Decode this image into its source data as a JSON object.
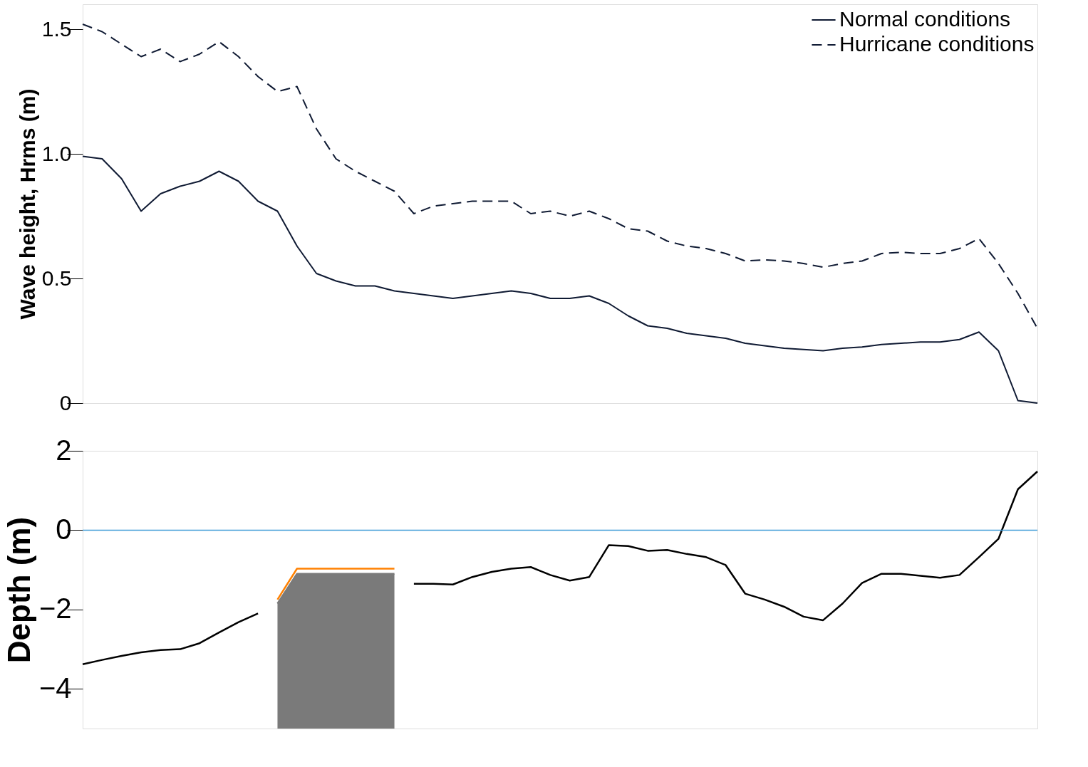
{
  "chart_data": [
    {
      "type": "line",
      "ylabel": "Wave height, Hrms (m)",
      "ylim": [
        0,
        1.6
      ],
      "yticks": [
        0,
        0.5,
        {
          "value": 1.0,
          "label": "1.0"
        },
        1.5
      ],
      "legend": "top right",
      "grid": false,
      "tick_labels": "y",
      "categories": [
        null,
        null,
        null,
        null,
        null,
        null,
        null,
        null,
        null,
        null,
        null,
        null,
        null,
        null,
        null,
        null,
        null,
        null,
        null,
        null,
        null,
        null,
        null,
        null,
        null,
        null,
        null,
        null,
        null,
        null,
        null,
        null,
        null,
        null,
        null,
        null,
        null,
        null,
        null,
        null,
        null,
        null,
        null,
        null,
        null,
        null,
        null,
        null,
        null,
        null
      ],
      "series": [
        {
          "name": "Normal conditions",
          "color": "#0f1a33",
          "line_style": "solid",
          "values": [
            0.99,
            0.98,
            0.9,
            0.77,
            0.84,
            0.87,
            0.89,
            0.93,
            0.89,
            0.81,
            0.77,
            0.63,
            0.52,
            0.49,
            0.47,
            0.47,
            0.45,
            0.44,
            0.43,
            0.42,
            0.43,
            0.44,
            0.45,
            0.44,
            0.42,
            0.42,
            0.43,
            0.4,
            0.35,
            0.31,
            0.3,
            0.28,
            0.27,
            0.26,
            0.24,
            0.23,
            0.22,
            0.215,
            0.21,
            0.22,
            0.225,
            0.235,
            0.24,
            0.245,
            0.245,
            0.255,
            0.285,
            0.21,
            0.01,
            0
          ]
        },
        {
          "name": "Hurricane conditions",
          "color": "#0f1a33",
          "line_style": "dashed",
          "values": [
            1.52,
            1.49,
            1.44,
            1.39,
            1.42,
            1.37,
            1.4,
            1.45,
            1.39,
            1.31,
            1.25,
            1.27,
            1.1,
            0.98,
            0.93,
            0.89,
            0.85,
            0.76,
            0.79,
            0.8,
            0.81,
            0.81,
            0.81,
            0.76,
            0.77,
            0.75,
            0.77,
            0.74,
            0.7,
            0.69,
            0.65,
            0.63,
            0.62,
            0.6,
            0.57,
            0.575,
            0.57,
            0.56,
            0.545,
            0.56,
            0.57,
            0.6,
            0.605,
            0.6,
            0.6,
            0.62,
            0.66,
            0.56,
            0.44,
            0.3
          ]
        }
      ]
    },
    {
      "type": "line",
      "ylabel": "Depth (m)",
      "ylim": [
        -5,
        2
      ],
      "yticks": [
        2,
        0,
        {
          "value": -2,
          "label": "−2"
        },
        {
          "value": -4,
          "label": "−4"
        }
      ],
      "grid": false,
      "tick_labels": "y",
      "categories": [
        null,
        null,
        null,
        null,
        null,
        null,
        null,
        null,
        null,
        null,
        null,
        null,
        null,
        null,
        null,
        null,
        null,
        null,
        null,
        null,
        null,
        null,
        null,
        null,
        null,
        null,
        null,
        null,
        null,
        null,
        null,
        null,
        null,
        null,
        null,
        null,
        null,
        null,
        null,
        null,
        null,
        null,
        null,
        null,
        null,
        null,
        null,
        null,
        null,
        null
      ],
      "ref_lines": [
        {
          "axis": "y",
          "value": 0,
          "color": "#3d9bd6"
        }
      ],
      "series": [
        {
          "type": "line",
          "color": "#7a7a7a",
          "values": [
            null,
            null,
            null,
            null,
            null,
            null,
            null,
            null,
            null,
            null,
            -1.85,
            -1.1,
            -1.1,
            -1.1,
            -1.1,
            -1.1,
            -1.1,
            null,
            null,
            null,
            null,
            null,
            null,
            null,
            null,
            null,
            null,
            null,
            null,
            null,
            null,
            null,
            null,
            null,
            null,
            null,
            null,
            null,
            null,
            null,
            null,
            null,
            null,
            null,
            null,
            null,
            null,
            null,
            null,
            null
          ],
          "lower": [
            null,
            null,
            null,
            null,
            null,
            null,
            null,
            null,
            null,
            null,
            -5,
            -5,
            -5,
            -5,
            -5,
            -5,
            -5,
            null,
            null,
            null,
            null,
            null,
            null,
            null,
            null,
            null,
            null,
            null,
            null,
            null,
            null,
            null,
            null,
            null,
            null,
            null,
            null,
            null,
            null,
            null,
            null,
            null,
            null,
            null,
            null,
            null,
            null,
            null,
            null,
            null
          ],
          "upper": [
            null,
            null,
            null,
            null,
            null,
            null,
            null,
            null,
            null,
            null,
            -1.85,
            -1.1,
            -1.1,
            -1.1,
            -1.1,
            -1.1,
            -1.1,
            null,
            null,
            null,
            null,
            null,
            null,
            null,
            null,
            null,
            null,
            null,
            null,
            null,
            null,
            null,
            null,
            null,
            null,
            null,
            null,
            null,
            null,
            null,
            null,
            null,
            null,
            null,
            null,
            null,
            null,
            null,
            null,
            null
          ]
        },
        {
          "type": "line",
          "color": "#ff8000",
          "line_style": "solid",
          "values": [
            null,
            null,
            null,
            null,
            null,
            null,
            null,
            null,
            null,
            null,
            -1.75,
            -0.97,
            -0.97,
            -0.97,
            -0.97,
            -0.97,
            -0.97,
            null,
            null,
            null,
            null,
            null,
            null,
            null,
            null,
            null,
            null,
            null,
            null,
            null,
            null,
            null,
            null,
            null,
            null,
            null,
            null,
            null,
            null,
            null,
            null,
            null,
            null,
            null,
            null,
            null,
            null,
            null,
            null,
            null
          ]
        },
        {
          "type": "line",
          "color": "#000000",
          "line_style": "solid",
          "values": [
            -3.38,
            -3.27,
            -3.17,
            -3.08,
            -3.02,
            -3.0,
            -2.85,
            -2.58,
            -2.32,
            -2.1,
            null,
            null,
            null,
            null,
            null,
            null,
            null,
            -1.35,
            -1.35,
            -1.37,
            -1.18,
            -1.05,
            -0.97,
            -0.93,
            -1.13,
            -1.27,
            -1.18,
            -0.38,
            -0.4,
            -0.52,
            -0.5,
            -0.6,
            -0.68,
            -0.88,
            -1.6,
            -1.75,
            -1.93,
            -2.18,
            -2.27,
            -1.85,
            -1.33,
            -1.1,
            -1.1,
            -1.15,
            -1.2,
            -1.13,
            -0.68,
            -0.22,
            1.03,
            1.48
          ]
        }
      ]
    }
  ]
}
